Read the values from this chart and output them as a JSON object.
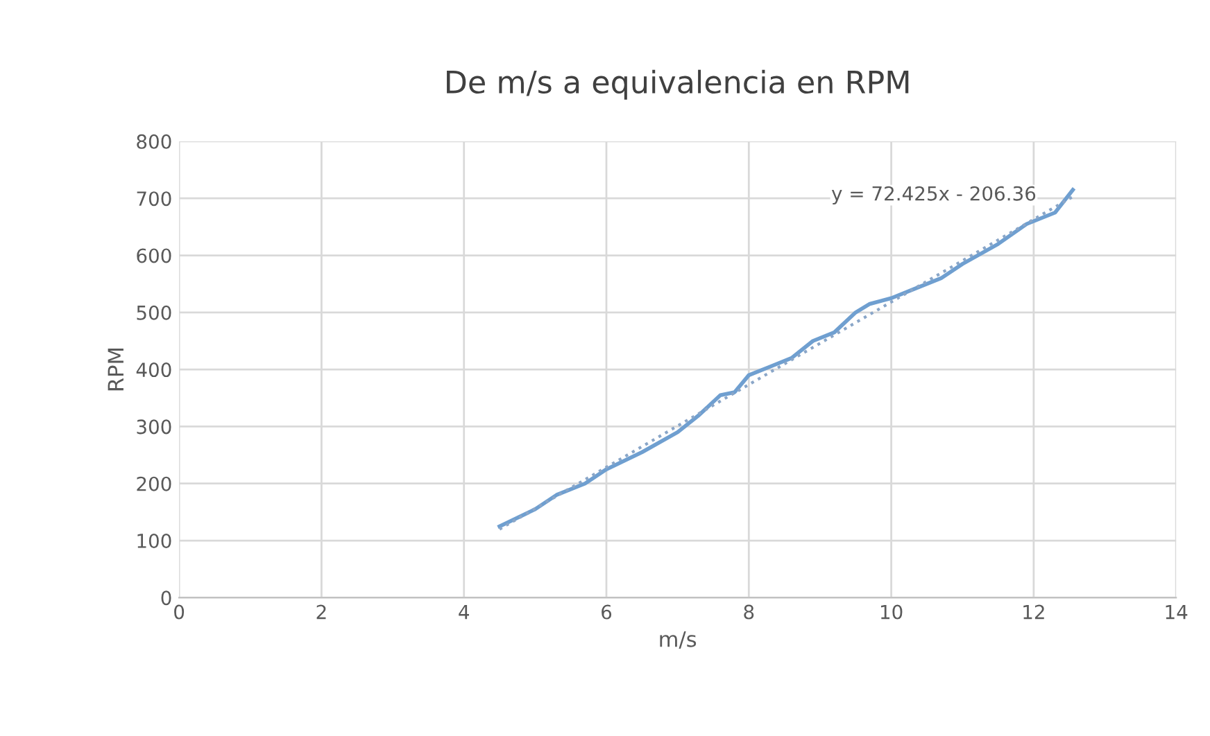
{
  "chart_data": {
    "type": "line",
    "title": "De m/s a equivalencia en RPM",
    "xlabel": "m/s",
    "ylabel": "RPM",
    "xlim": [
      0,
      14
    ],
    "xticks": [
      0,
      2,
      4,
      6,
      8,
      10,
      12,
      14
    ],
    "ylim": [
      0,
      800
    ],
    "yticks": [
      0,
      100,
      200,
      300,
      400,
      500,
      600,
      700,
      800
    ],
    "grid": true,
    "legend": false,
    "series": [
      {
        "color": "#6f9fd0",
        "line_style": "solid",
        "x": [
          4.5,
          5.0,
          5.3,
          5.7,
          6.0,
          6.5,
          7.0,
          7.3,
          7.6,
          7.8,
          8.0,
          8.3,
          8.6,
          8.9,
          9.2,
          9.5,
          9.7,
          10.0,
          10.3,
          10.7,
          11.0,
          11.5,
          11.9,
          12.3,
          12.55
        ],
        "values": [
          125,
          155,
          180,
          200,
          225,
          255,
          290,
          320,
          355,
          360,
          390,
          405,
          420,
          450,
          465,
          500,
          515,
          525,
          540,
          560,
          585,
          620,
          655,
          675,
          715
        ]
      },
      {
        "color": "#8aa6c8",
        "line_style": "dotted",
        "x": [
          4.5,
          12.55
        ],
        "values": [
          120,
          703
        ]
      }
    ],
    "annotations": [
      "y = 72.425x - 206.36"
    ]
  }
}
